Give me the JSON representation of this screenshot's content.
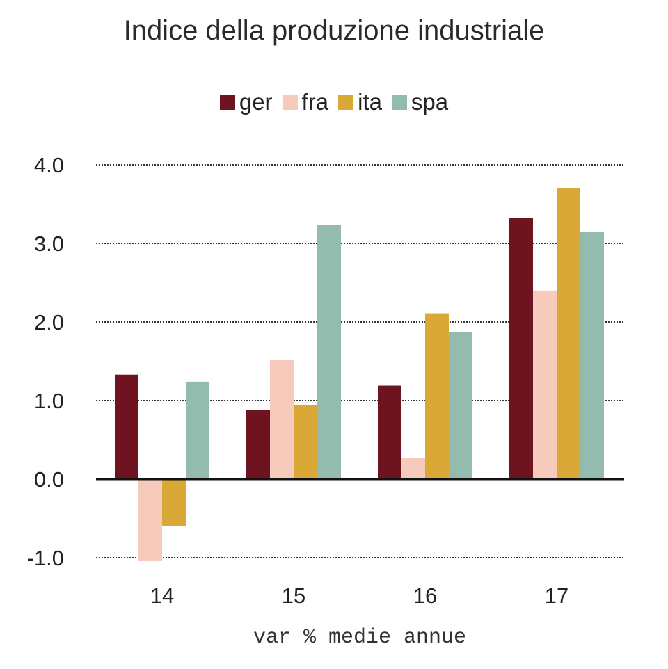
{
  "chart_data": {
    "type": "bar",
    "title": "Indice della produzione industriale",
    "xlabel": "var % medie annue",
    "ylabel": "",
    "categories": [
      "14",
      "15",
      "16",
      "17"
    ],
    "series": [
      {
        "name": "ger",
        "color": "#6e1420",
        "values": [
          1.33,
          0.88,
          1.19,
          3.32
        ]
      },
      {
        "name": "fra",
        "color": "#f7cbbc",
        "values": [
          -1.04,
          1.52,
          0.27,
          2.4
        ]
      },
      {
        "name": "ita",
        "color": "#d9a837",
        "values": [
          -0.6,
          0.94,
          2.11,
          3.7
        ]
      },
      {
        "name": "spa",
        "color": "#93bcae",
        "values": [
          1.24,
          3.23,
          1.87,
          3.15
        ]
      }
    ],
    "yticks": [
      "4.0",
      "3.0",
      "2.0",
      "1.0",
      "0.0",
      "-1.0"
    ],
    "ylim": [
      -1.0,
      4.0
    ],
    "legend_position": "top-center",
    "grid": "dotted"
  }
}
